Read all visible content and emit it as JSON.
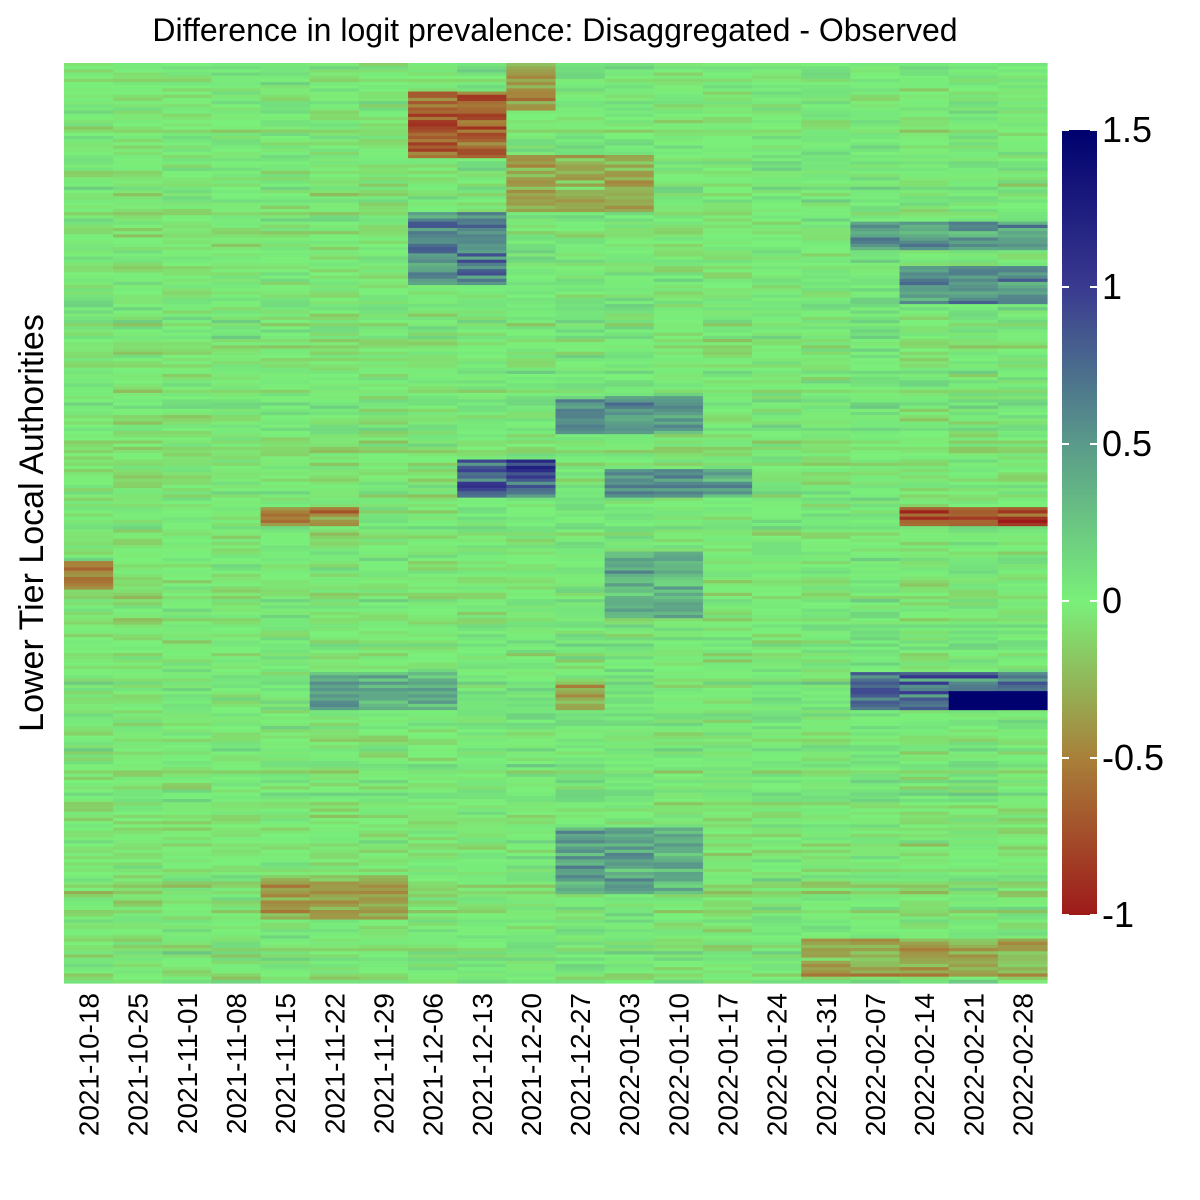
{
  "chart_data": {
    "type": "heatmap",
    "title": "Difference in logit prevalence: Disaggregated - Observed",
    "xlabel": "",
    "ylabel": "Lower Tier Local Authorities",
    "x": [
      "2021-10-18",
      "2021-10-25",
      "2021-11-01",
      "2021-11-08",
      "2021-11-15",
      "2021-11-22",
      "2021-11-29",
      "2021-12-06",
      "2021-12-13",
      "2021-12-20",
      "2021-12-27",
      "2022-01-03",
      "2022-01-10",
      "2022-01-17",
      "2022-01-24",
      "2022-01-31",
      "2022-02-07",
      "2022-02-14",
      "2022-02-21",
      "2022-02-28"
    ],
    "rows_shown_as_bands": true,
    "color_scale": {
      "range": [
        -1,
        1.5
      ],
      "ticks": [
        -1,
        -0.5,
        0,
        0.5,
        1,
        1.5
      ],
      "tick_labels": [
        "-1",
        "-0.5",
        "0",
        "0.5",
        "1",
        "1.5"
      ],
      "stops": [
        {
          "value": -1.0,
          "color": "#9e1a1a"
        },
        {
          "value": -0.5,
          "color": "#a8803a"
        },
        {
          "value": 0.0,
          "color": "#7af07a"
        },
        {
          "value": 0.5,
          "color": "#5a9a8a"
        },
        {
          "value": 1.0,
          "color": "#3a3a90"
        },
        {
          "value": 1.5,
          "color": "#00006e"
        }
      ]
    },
    "legend": "right",
    "grid": false
  }
}
